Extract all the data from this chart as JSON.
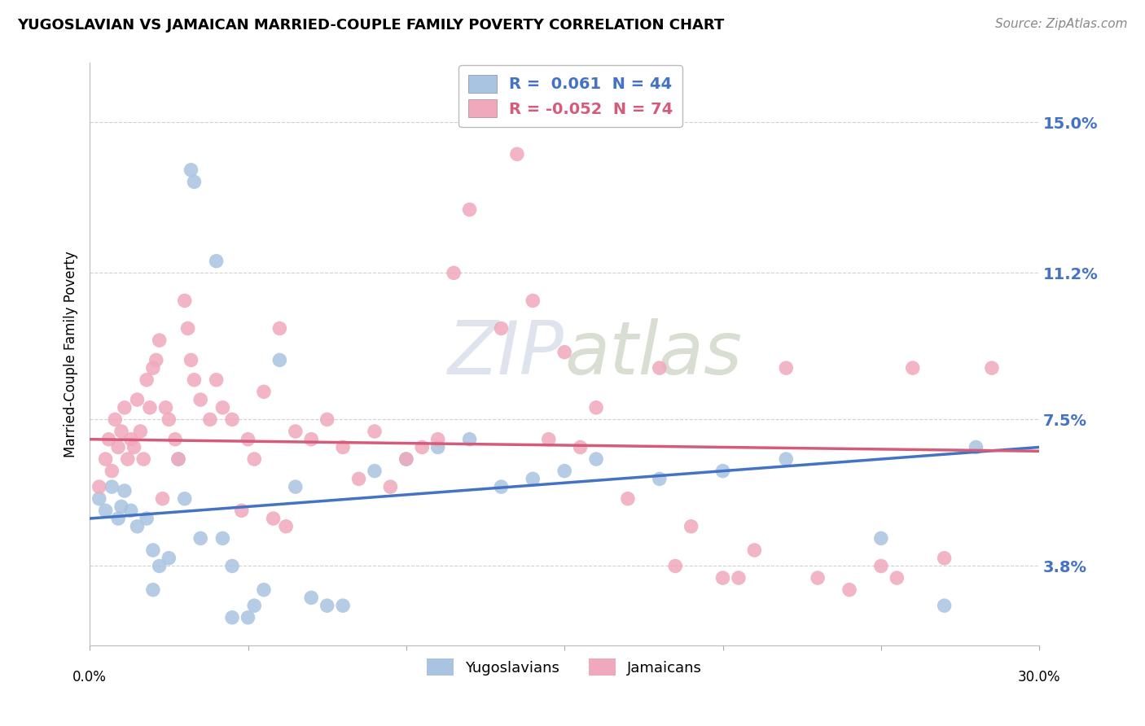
{
  "title": "YUGOSLAVIAN VS JAMAICAN MARRIED-COUPLE FAMILY POVERTY CORRELATION CHART",
  "source": "Source: ZipAtlas.com",
  "ylabel": "Married-Couple Family Poverty",
  "yticks": [
    3.8,
    7.5,
    11.2,
    15.0
  ],
  "xlim": [
    0.0,
    30.0
  ],
  "ylim": [
    1.8,
    16.5
  ],
  "legend_label1": "Yugoslavians",
  "legend_label2": "Jamaicans",
  "yugo_color": "#a8c4e0",
  "jam_color": "#f0a8bc",
  "yugo_line_color": "#4472c4",
  "jam_line_color": "#d45c7a",
  "background_color": "#ffffff",
  "yugo_line_start": 5.0,
  "yugo_line_end": 6.8,
  "jam_line_start": 7.0,
  "jam_line_end": 6.7,
  "yugo_points": [
    [
      0.3,
      5.5
    ],
    [
      0.5,
      5.2
    ],
    [
      0.7,
      5.8
    ],
    [
      0.9,
      5.0
    ],
    [
      1.0,
      5.3
    ],
    [
      1.1,
      5.7
    ],
    [
      1.3,
      5.2
    ],
    [
      1.5,
      4.8
    ],
    [
      1.8,
      5.0
    ],
    [
      2.0,
      4.2
    ],
    [
      2.2,
      3.8
    ],
    [
      2.5,
      4.0
    ],
    [
      2.8,
      6.5
    ],
    [
      3.0,
      5.5
    ],
    [
      3.2,
      13.8
    ],
    [
      3.3,
      13.5
    ],
    [
      3.5,
      4.5
    ],
    [
      4.0,
      11.5
    ],
    [
      4.2,
      4.5
    ],
    [
      4.5,
      3.8
    ],
    [
      5.0,
      2.5
    ],
    [
      5.2,
      2.8
    ],
    [
      5.5,
      3.2
    ],
    [
      6.0,
      9.0
    ],
    [
      6.5,
      5.8
    ],
    [
      7.0,
      3.0
    ],
    [
      7.5,
      2.8
    ],
    [
      8.0,
      2.8
    ],
    [
      9.0,
      6.2
    ],
    [
      10.0,
      6.5
    ],
    [
      11.0,
      6.8
    ],
    [
      12.0,
      7.0
    ],
    [
      13.0,
      5.8
    ],
    [
      14.0,
      6.0
    ],
    [
      15.0,
      6.2
    ],
    [
      16.0,
      6.5
    ],
    [
      18.0,
      6.0
    ],
    [
      20.0,
      6.2
    ],
    [
      22.0,
      6.5
    ],
    [
      25.0,
      4.5
    ],
    [
      27.0,
      2.8
    ],
    [
      28.0,
      6.8
    ],
    [
      2.0,
      3.2
    ],
    [
      4.5,
      2.5
    ]
  ],
  "jam_points": [
    [
      0.3,
      5.8
    ],
    [
      0.5,
      6.5
    ],
    [
      0.6,
      7.0
    ],
    [
      0.7,
      6.2
    ],
    [
      0.8,
      7.5
    ],
    [
      0.9,
      6.8
    ],
    [
      1.0,
      7.2
    ],
    [
      1.1,
      7.8
    ],
    [
      1.2,
      6.5
    ],
    [
      1.3,
      7.0
    ],
    [
      1.4,
      6.8
    ],
    [
      1.5,
      8.0
    ],
    [
      1.6,
      7.2
    ],
    [
      1.7,
      6.5
    ],
    [
      1.8,
      8.5
    ],
    [
      1.9,
      7.8
    ],
    [
      2.0,
      8.8
    ],
    [
      2.1,
      9.0
    ],
    [
      2.2,
      9.5
    ],
    [
      2.3,
      5.5
    ],
    [
      2.4,
      7.8
    ],
    [
      2.5,
      7.5
    ],
    [
      2.7,
      7.0
    ],
    [
      2.8,
      6.5
    ],
    [
      3.0,
      10.5
    ],
    [
      3.1,
      9.8
    ],
    [
      3.2,
      9.0
    ],
    [
      3.3,
      8.5
    ],
    [
      3.5,
      8.0
    ],
    [
      3.8,
      7.5
    ],
    [
      4.0,
      8.5
    ],
    [
      4.2,
      7.8
    ],
    [
      4.5,
      7.5
    ],
    [
      4.8,
      5.2
    ],
    [
      5.0,
      7.0
    ],
    [
      5.2,
      6.5
    ],
    [
      5.5,
      8.2
    ],
    [
      5.8,
      5.0
    ],
    [
      6.0,
      9.8
    ],
    [
      6.2,
      4.8
    ],
    [
      6.5,
      7.2
    ],
    [
      7.0,
      7.0
    ],
    [
      7.5,
      7.5
    ],
    [
      8.0,
      6.8
    ],
    [
      8.5,
      6.0
    ],
    [
      9.0,
      7.2
    ],
    [
      9.5,
      5.8
    ],
    [
      10.0,
      6.5
    ],
    [
      10.5,
      6.8
    ],
    [
      11.0,
      7.0
    ],
    [
      11.5,
      11.2
    ],
    [
      12.0,
      12.8
    ],
    [
      13.0,
      9.8
    ],
    [
      13.5,
      14.2
    ],
    [
      14.0,
      10.5
    ],
    [
      14.5,
      7.0
    ],
    [
      15.0,
      9.2
    ],
    [
      15.5,
      6.8
    ],
    [
      16.0,
      7.8
    ],
    [
      17.0,
      5.5
    ],
    [
      18.0,
      8.8
    ],
    [
      18.5,
      3.8
    ],
    [
      19.0,
      4.8
    ],
    [
      20.0,
      3.5
    ],
    [
      20.5,
      3.5
    ],
    [
      21.0,
      4.2
    ],
    [
      22.0,
      8.8
    ],
    [
      23.0,
      3.5
    ],
    [
      24.0,
      3.2
    ],
    [
      25.0,
      3.8
    ],
    [
      25.5,
      3.5
    ],
    [
      26.0,
      8.8
    ],
    [
      27.0,
      4.0
    ],
    [
      28.5,
      8.8
    ]
  ]
}
